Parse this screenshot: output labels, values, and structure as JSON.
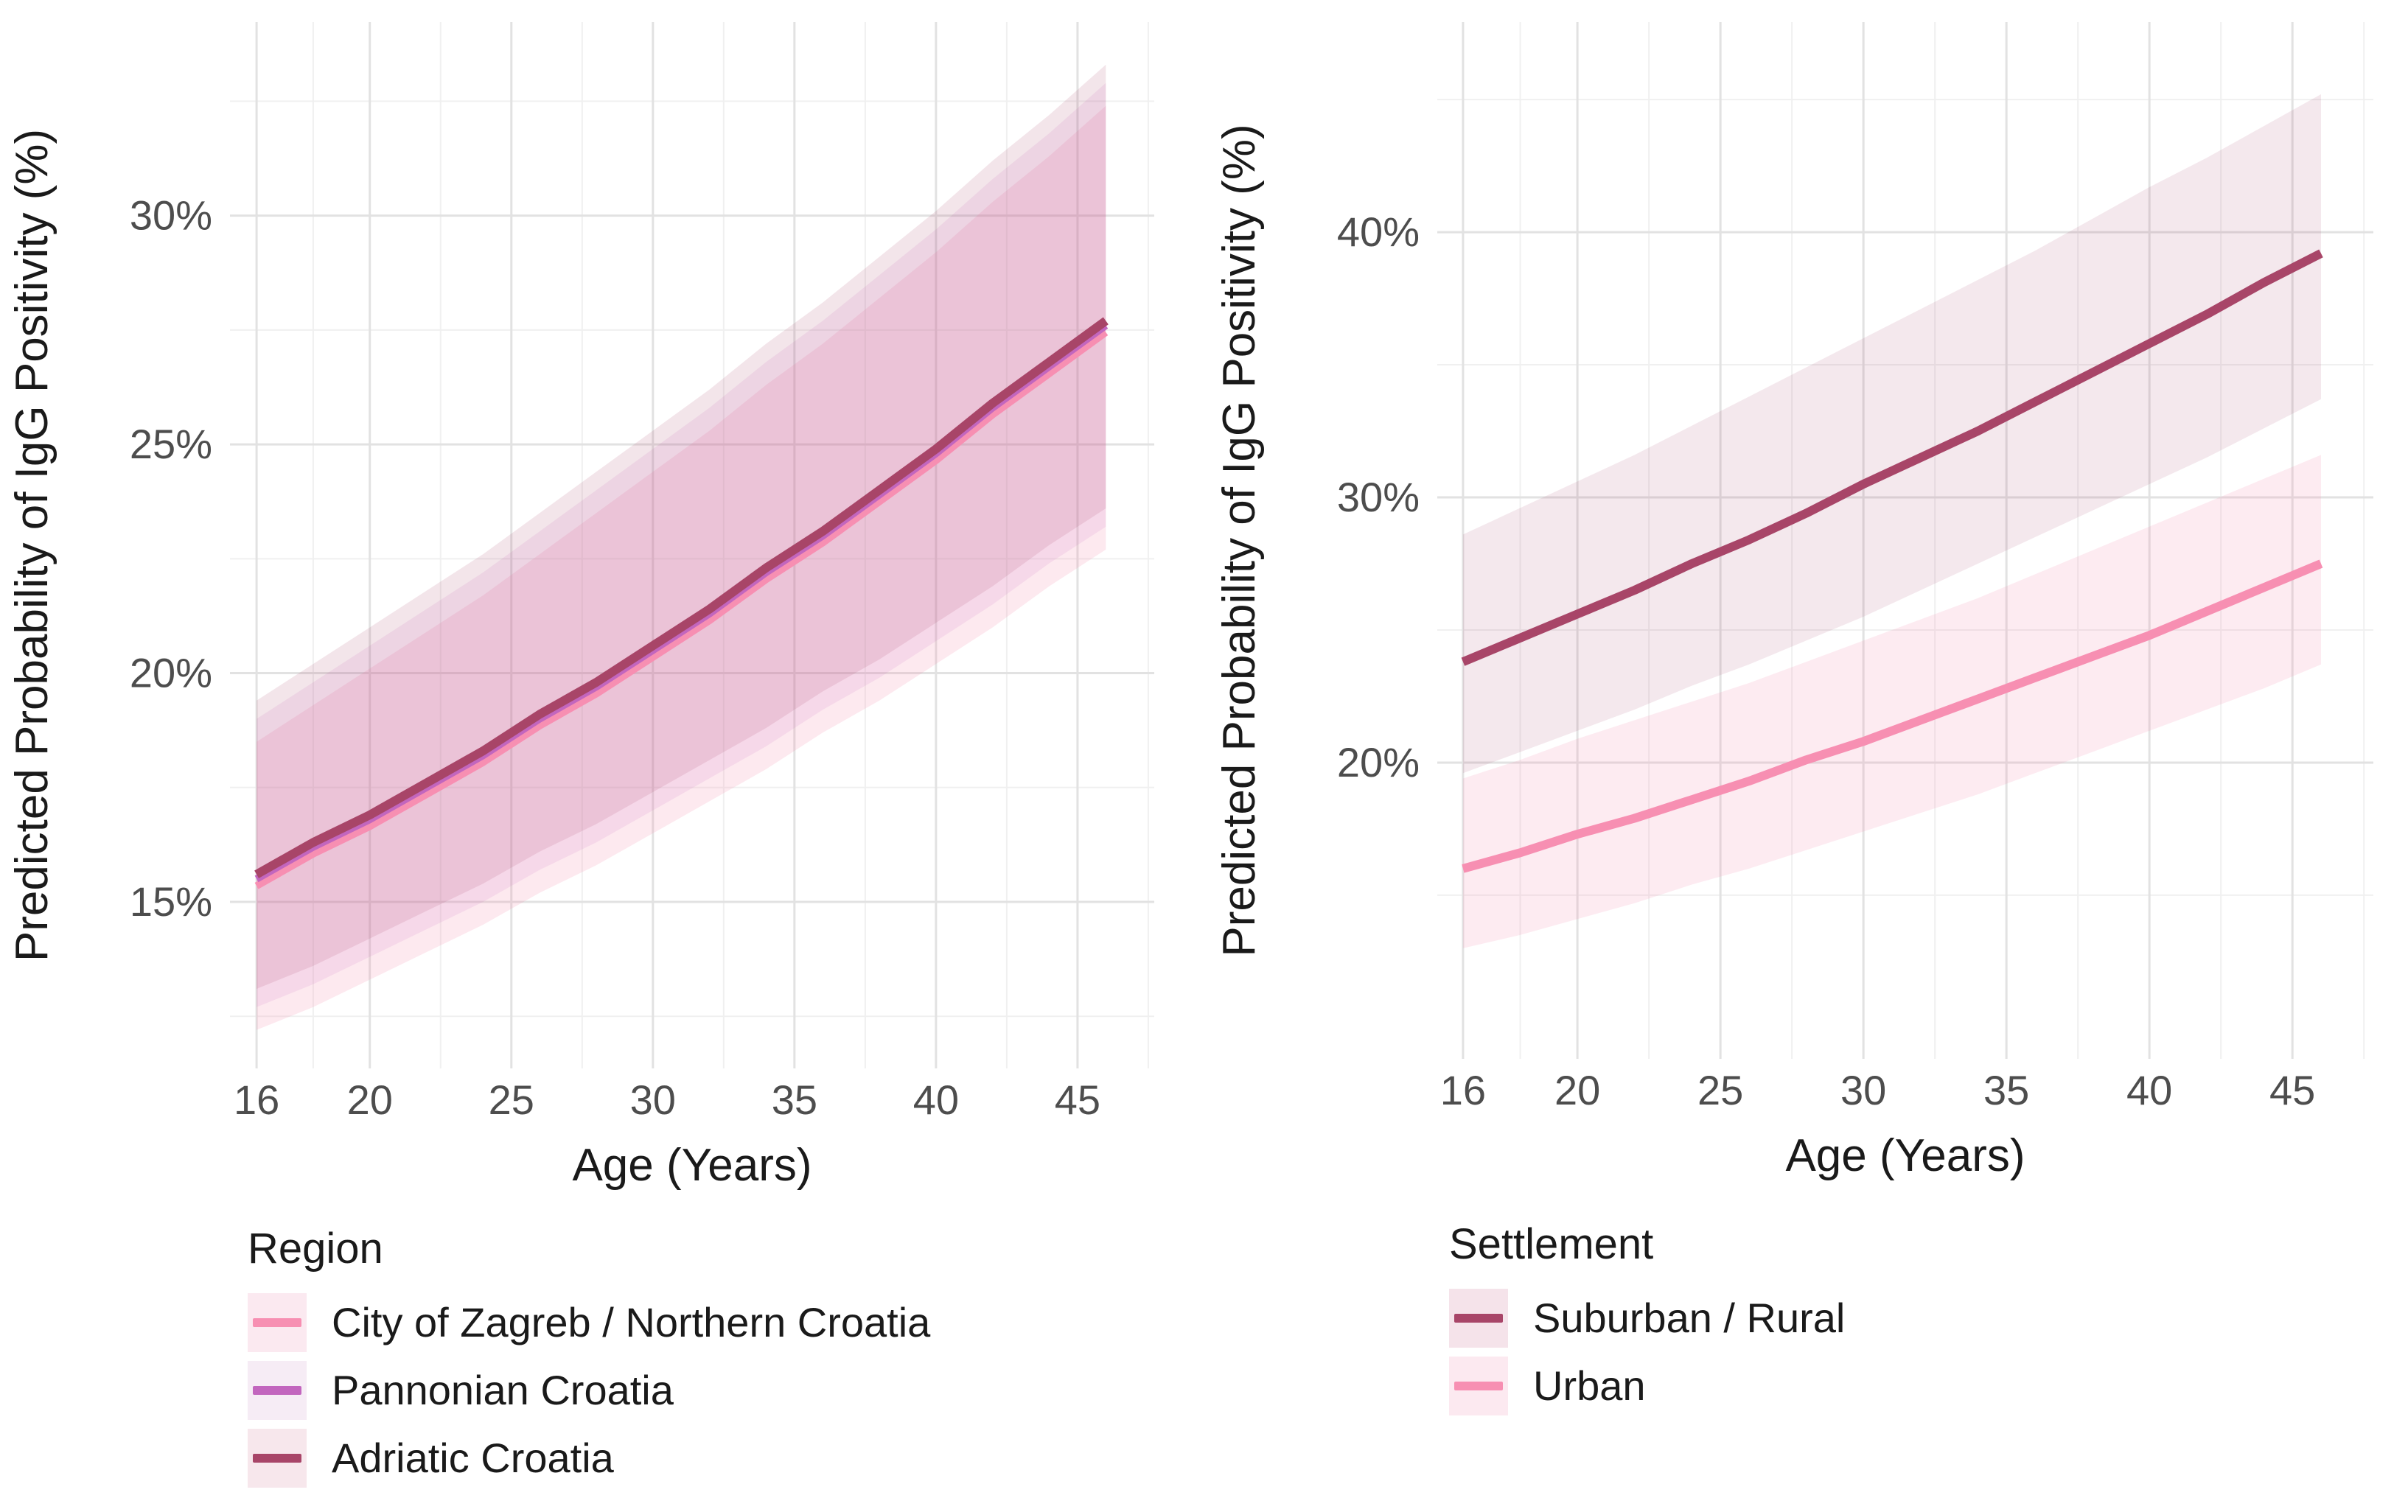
{
  "style": {
    "background": "#FFFFFF",
    "grid_major": "#E2E2E2",
    "grid_minor": "#F0F0F0",
    "tick_label_color": "#4D4D4D",
    "axis_title_color": "#1A1A1A",
    "pink": "#F78FB2",
    "purple": "#C266BE",
    "maroon": "#A84568"
  },
  "chart_data": [
    {
      "type": "line",
      "title": "",
      "xlabel": "Age (Years)",
      "ylabel": "Predicted Probability of IgG Positivity (%)",
      "legend": {
        "title": "Region",
        "position": "bottom-left"
      },
      "grid": "on",
      "ages": [
        16,
        18,
        20,
        22,
        24,
        26,
        28,
        30,
        32,
        34,
        36,
        38,
        40,
        42,
        44,
        46
      ],
      "x_axis": {
        "domain": [
          15.06,
          47.71
        ],
        "ticks": [
          {
            "value": 16,
            "label": "16"
          },
          {
            "value": 20,
            "label": "20"
          },
          {
            "value": 25,
            "label": "25"
          },
          {
            "value": 30,
            "label": "30"
          },
          {
            "value": 35,
            "label": "35"
          },
          {
            "value": 40,
            "label": "40"
          },
          {
            "value": 45,
            "label": "45"
          }
        ],
        "minor": [
          18,
          22.5,
          27.5,
          32.5,
          37.5,
          42.5,
          47.5
        ]
      },
      "y_axis": {
        "domain": [
          11.36,
          34.23
        ],
        "ticks": [
          {
            "value": 15,
            "label": "15%"
          },
          {
            "value": 20,
            "label": "20%"
          },
          {
            "value": 25,
            "label": "25%"
          },
          {
            "value": 30,
            "label": "30%"
          }
        ],
        "minor": [
          12.5,
          17.5,
          22.5,
          27.5,
          32.5
        ]
      },
      "series": [
        {
          "id": "zagreb",
          "name": "City of Zagreb / Northern Croatia",
          "color": "#F78FB2",
          "line_width": 10,
          "ribbon_color": "#F48FB1",
          "ribbon_opacity": 0.2,
          "swatch_bg": "#FBE9F0",
          "values": [
            15.35,
            16.05,
            16.65,
            17.35,
            18.05,
            18.85,
            19.55,
            20.35,
            21.15,
            22.05,
            22.85,
            23.75,
            24.65,
            25.65,
            26.55,
            27.45
          ],
          "lower": [
            12.2,
            12.7,
            13.3,
            13.9,
            14.5,
            15.2,
            15.8,
            16.5,
            17.2,
            17.9,
            18.7,
            19.4,
            20.2,
            21.0,
            21.9,
            22.7
          ],
          "upper": [
            18.5,
            19.3,
            20.1,
            20.9,
            21.7,
            22.6,
            23.5,
            24.4,
            25.3,
            26.3,
            27.2,
            28.2,
            29.2,
            30.3,
            31.3,
            32.4
          ]
        },
        {
          "id": "pannonian",
          "name": "Pannonian Croatia",
          "color": "#C266BE",
          "line_width": 10,
          "ribbon_color": "#C266BE",
          "ribbon_opacity": 0.12,
          "swatch_bg": "#F6ECF5",
          "values": [
            15.5,
            16.2,
            16.8,
            17.5,
            18.2,
            19.0,
            19.7,
            20.5,
            21.3,
            22.2,
            23.0,
            23.9,
            24.8,
            25.8,
            26.7,
            27.6
          ],
          "lower": [
            12.7,
            13.2,
            13.8,
            14.4,
            15.0,
            15.7,
            16.3,
            17.0,
            17.7,
            18.4,
            19.2,
            19.9,
            20.7,
            21.5,
            22.4,
            23.2
          ],
          "upper": [
            19.0,
            19.8,
            20.6,
            21.4,
            22.2,
            23.1,
            24.0,
            24.9,
            25.8,
            26.8,
            27.7,
            28.7,
            29.7,
            30.8,
            31.8,
            32.9
          ]
        },
        {
          "id": "adriatic",
          "name": "Adriatic Croatia",
          "color": "#A84568",
          "line_width": 12,
          "ribbon_color": "#A84568",
          "ribbon_opacity": 0.14,
          "swatch_bg": "#F7E7EC",
          "values": [
            15.6,
            16.3,
            16.9,
            17.6,
            18.3,
            19.1,
            19.8,
            20.6,
            21.4,
            22.3,
            23.1,
            24.0,
            24.9,
            25.9,
            26.8,
            27.7
          ],
          "lower": [
            13.1,
            13.6,
            14.2,
            14.8,
            15.4,
            16.1,
            16.7,
            17.4,
            18.1,
            18.8,
            19.6,
            20.3,
            21.1,
            21.9,
            22.8,
            23.6
          ],
          "upper": [
            19.4,
            20.2,
            21.0,
            21.8,
            22.6,
            23.5,
            24.4,
            25.3,
            26.2,
            27.2,
            28.1,
            29.1,
            30.1,
            31.2,
            32.2,
            33.3
          ]
        }
      ]
    },
    {
      "type": "line",
      "title": "",
      "xlabel": "Age (Years)",
      "ylabel": "Predicted Probability of IgG Positivity (%)",
      "legend": {
        "title": "Settlement",
        "position": "bottom-left"
      },
      "grid": "on",
      "ages": [
        16,
        18,
        20,
        22,
        24,
        26,
        28,
        30,
        32,
        34,
        36,
        38,
        40,
        42,
        44,
        46
      ],
      "x_axis": {
        "domain": [
          15.1,
          47.83
        ],
        "ticks": [
          {
            "value": 16,
            "label": "16"
          },
          {
            "value": 20,
            "label": "20"
          },
          {
            "value": 25,
            "label": "25"
          },
          {
            "value": 30,
            "label": "30"
          },
          {
            "value": 35,
            "label": "35"
          },
          {
            "value": 40,
            "label": "40"
          },
          {
            "value": 45,
            "label": "45"
          }
        ],
        "minor": [
          18,
          22.5,
          27.5,
          32.5,
          37.5,
          42.5,
          47.5
        ]
      },
      "y_axis": {
        "domain": [
          8.83,
          47.92
        ],
        "ticks": [
          {
            "value": 20,
            "label": "20%"
          },
          {
            "value": 30,
            "label": "30%"
          },
          {
            "value": 40,
            "label": "40%"
          }
        ],
        "minor": [
          15,
          25,
          35,
          45
        ]
      },
      "series": [
        {
          "id": "suburban-rural",
          "name": "Suburban / Rural",
          "color": "#A84568",
          "line_width": 12,
          "ribbon_color": "#A84568",
          "ribbon_opacity": 0.12,
          "swatch_bg": "#F5E3EA",
          "values": [
            23.8,
            24.7,
            25.6,
            26.5,
            27.5,
            28.4,
            29.4,
            30.5,
            31.5,
            32.5,
            33.6,
            34.7,
            35.8,
            36.9,
            38.1,
            39.2
          ],
          "lower": [
            19.6,
            20.4,
            21.2,
            22.0,
            22.9,
            23.7,
            24.6,
            25.5,
            26.5,
            27.5,
            28.5,
            29.5,
            30.5,
            31.5,
            32.6,
            33.7
          ],
          "upper": [
            28.6,
            29.6,
            30.6,
            31.6,
            32.7,
            33.8,
            34.9,
            36.0,
            37.1,
            38.2,
            39.3,
            40.5,
            41.7,
            42.8,
            44.0,
            45.2
          ]
        },
        {
          "id": "urban",
          "name": "Urban",
          "color": "#F78FB2",
          "line_width": 12,
          "ribbon_color": "#F48FB1",
          "ribbon_opacity": 0.18,
          "swatch_bg": "#FCE9F0",
          "values": [
            16.0,
            16.6,
            17.3,
            17.9,
            18.6,
            19.3,
            20.1,
            20.8,
            21.6,
            22.4,
            23.2,
            24.0,
            24.8,
            25.7,
            26.6,
            27.5
          ],
          "lower": [
            13.0,
            13.5,
            14.1,
            14.7,
            15.4,
            16.0,
            16.7,
            17.4,
            18.1,
            18.8,
            19.6,
            20.4,
            21.2,
            22.0,
            22.8,
            23.7
          ],
          "upper": [
            19.4,
            20.1,
            20.9,
            21.6,
            22.3,
            23.0,
            23.8,
            24.6,
            25.4,
            26.2,
            27.1,
            28.0,
            28.9,
            29.8,
            30.7,
            31.6
          ]
        }
      ]
    }
  ]
}
